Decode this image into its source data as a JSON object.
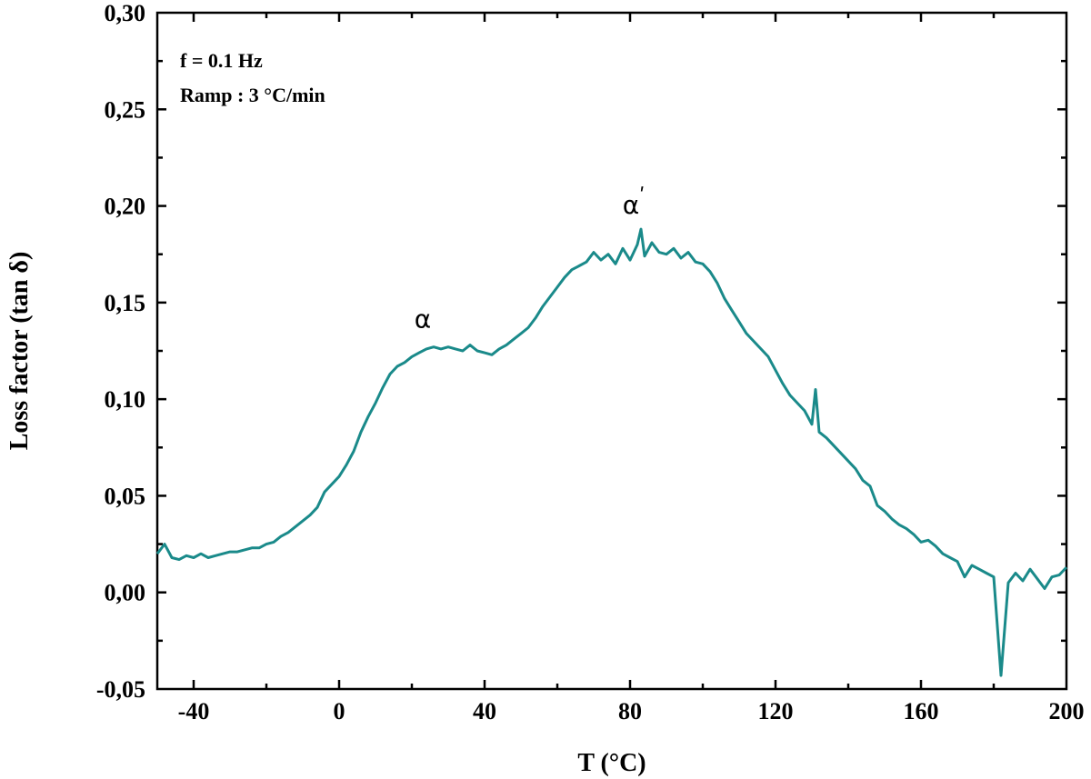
{
  "chart_data": {
    "type": "line",
    "title": "",
    "xlabel": "T (°C)",
    "ylabel": "Loss factor (tan δ)",
    "xlim": [
      -50,
      200
    ],
    "ylim": [
      -0.05,
      0.3
    ],
    "x_ticks": [
      -40,
      0,
      40,
      80,
      120,
      160,
      200
    ],
    "x_tick_labels": [
      "-40",
      "0",
      "40",
      "80",
      "120",
      "160",
      "200"
    ],
    "y_ticks": [
      -0.05,
      0.0,
      0.05,
      0.1,
      0.15,
      0.2,
      0.25,
      0.3
    ],
    "y_tick_labels": [
      "-0,05",
      "0,00",
      "0,05",
      "0,10",
      "0,15",
      "0,20",
      "0,25",
      "0,30"
    ],
    "grid": false,
    "annotations": [
      {
        "text": "f = 0.1 Hz"
      },
      {
        "text": "Ramp : 3 °C/min"
      }
    ],
    "peak_labels": [
      {
        "text": "α",
        "x": 23,
        "y": 0.137
      },
      {
        "text": "α",
        "prime": "ʹ",
        "x": 81,
        "y": 0.196
      }
    ],
    "series": [
      {
        "color": "#1a8a8a",
        "x": [
          -50,
          -48,
          -46,
          -44,
          -42,
          -40,
          -38,
          -36,
          -34,
          -32,
          -30,
          -28,
          -26,
          -24,
          -22,
          -20,
          -18,
          -16,
          -14,
          -12,
          -10,
          -8,
          -6,
          -4,
          -2,
          0,
          2,
          4,
          6,
          8,
          10,
          12,
          14,
          16,
          18,
          20,
          22,
          24,
          26,
          28,
          30,
          32,
          34,
          36,
          38,
          40,
          42,
          44,
          46,
          48,
          50,
          52,
          54,
          56,
          58,
          60,
          62,
          64,
          66,
          68,
          70,
          72,
          74,
          76,
          78,
          80,
          82,
          83,
          84,
          86,
          88,
          90,
          92,
          94,
          96,
          98,
          100,
          102,
          104,
          106,
          108,
          110,
          112,
          114,
          116,
          118,
          120,
          122,
          124,
          126,
          128,
          130,
          131,
          132,
          134,
          136,
          138,
          140,
          142,
          144,
          146,
          148,
          150,
          152,
          154,
          156,
          158,
          160,
          162,
          164,
          166,
          168,
          170,
          172,
          174,
          176,
          178,
          180,
          182,
          184,
          186,
          188,
          190,
          192,
          194,
          196,
          198,
          200
        ],
        "y": [
          0.02,
          0.025,
          0.018,
          0.017,
          0.019,
          0.018,
          0.02,
          0.018,
          0.019,
          0.02,
          0.021,
          0.021,
          0.022,
          0.023,
          0.023,
          0.025,
          0.026,
          0.029,
          0.031,
          0.034,
          0.037,
          0.04,
          0.044,
          0.052,
          0.056,
          0.06,
          0.066,
          0.073,
          0.083,
          0.091,
          0.098,
          0.106,
          0.113,
          0.117,
          0.119,
          0.122,
          0.124,
          0.126,
          0.127,
          0.126,
          0.127,
          0.126,
          0.125,
          0.128,
          0.125,
          0.124,
          0.123,
          0.126,
          0.128,
          0.131,
          0.134,
          0.137,
          0.142,
          0.148,
          0.153,
          0.158,
          0.163,
          0.167,
          0.169,
          0.171,
          0.176,
          0.172,
          0.175,
          0.17,
          0.178,
          0.172,
          0.18,
          0.188,
          0.174,
          0.181,
          0.176,
          0.175,
          0.178,
          0.173,
          0.176,
          0.171,
          0.17,
          0.166,
          0.16,
          0.152,
          0.146,
          0.14,
          0.134,
          0.13,
          0.126,
          0.122,
          0.115,
          0.108,
          0.102,
          0.098,
          0.094,
          0.087,
          0.105,
          0.083,
          0.08,
          0.076,
          0.072,
          0.068,
          0.064,
          0.058,
          0.055,
          0.045,
          0.042,
          0.038,
          0.035,
          0.033,
          0.03,
          0.026,
          0.027,
          0.024,
          0.02,
          0.018,
          0.016,
          0.008,
          0.014,
          0.012,
          0.01,
          0.008,
          -0.043,
          0.005,
          0.01,
          0.006,
          0.012,
          0.007,
          0.002,
          0.008,
          0.009,
          0.013
        ]
      }
    ]
  }
}
